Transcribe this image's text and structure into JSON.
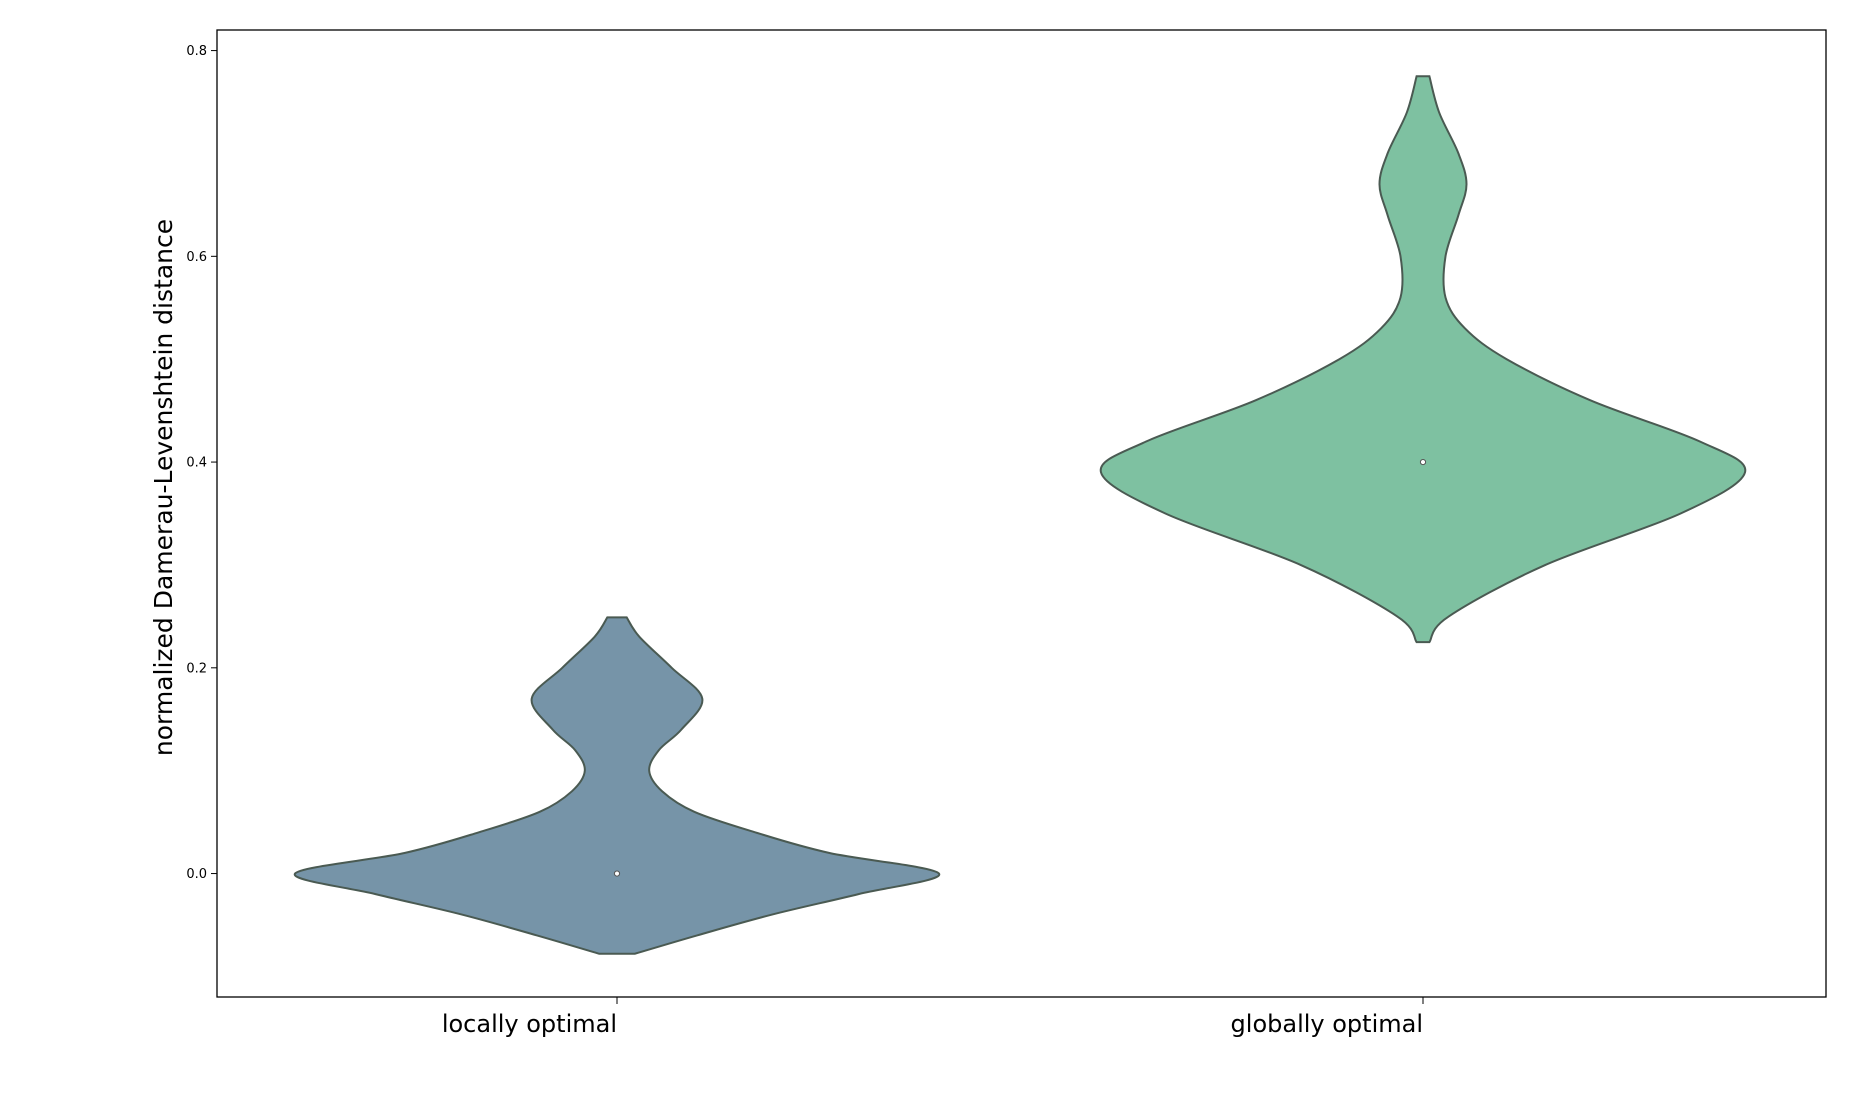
{
  "chart_data": {
    "type": "violin",
    "ylabel": "normalized Damerau-Levenshtein distance",
    "xlabel": "",
    "categories": [
      "locally optimal",
      "globally optimal"
    ],
    "ylim": [
      -0.12,
      0.82
    ],
    "yticks": [
      0.0,
      0.2,
      0.4,
      0.6,
      0.8
    ],
    "ytick_labels": [
      "0.0",
      "0.2",
      "0.4",
      "0.6",
      "0.8"
    ],
    "grid": false,
    "legend": "none",
    "series": [
      {
        "category": "locally optimal",
        "color": "#7694a8",
        "median": 0.0,
        "range": [
          -0.078,
          0.249
        ],
        "density_profile": [
          [
            -0.078,
            0.055
          ],
          [
            -0.06,
            0.25
          ],
          [
            -0.04,
            0.48
          ],
          [
            -0.02,
            0.75
          ],
          [
            0.0,
            1.0
          ],
          [
            0.02,
            0.66
          ],
          [
            0.04,
            0.43
          ],
          [
            0.06,
            0.24
          ],
          [
            0.08,
            0.14
          ],
          [
            0.1,
            0.1
          ],
          [
            0.12,
            0.13
          ],
          [
            0.14,
            0.2
          ],
          [
            0.17,
            0.265
          ],
          [
            0.2,
            0.17
          ],
          [
            0.23,
            0.07
          ],
          [
            0.249,
            0.03
          ]
        ]
      },
      {
        "category": "globally optimal",
        "color": "#7ec1a1",
        "median": 0.4,
        "range": [
          0.225,
          0.775
        ],
        "density_profile": [
          [
            0.225,
            0.02
          ],
          [
            0.25,
            0.08
          ],
          [
            0.3,
            0.38
          ],
          [
            0.35,
            0.8
          ],
          [
            0.39,
            1.0
          ],
          [
            0.42,
            0.86
          ],
          [
            0.46,
            0.52
          ],
          [
            0.5,
            0.26
          ],
          [
            0.53,
            0.13
          ],
          [
            0.56,
            0.07
          ],
          [
            0.6,
            0.07
          ],
          [
            0.64,
            0.11
          ],
          [
            0.67,
            0.135
          ],
          [
            0.7,
            0.11
          ],
          [
            0.74,
            0.05
          ],
          [
            0.775,
            0.02
          ]
        ]
      }
    ]
  }
}
